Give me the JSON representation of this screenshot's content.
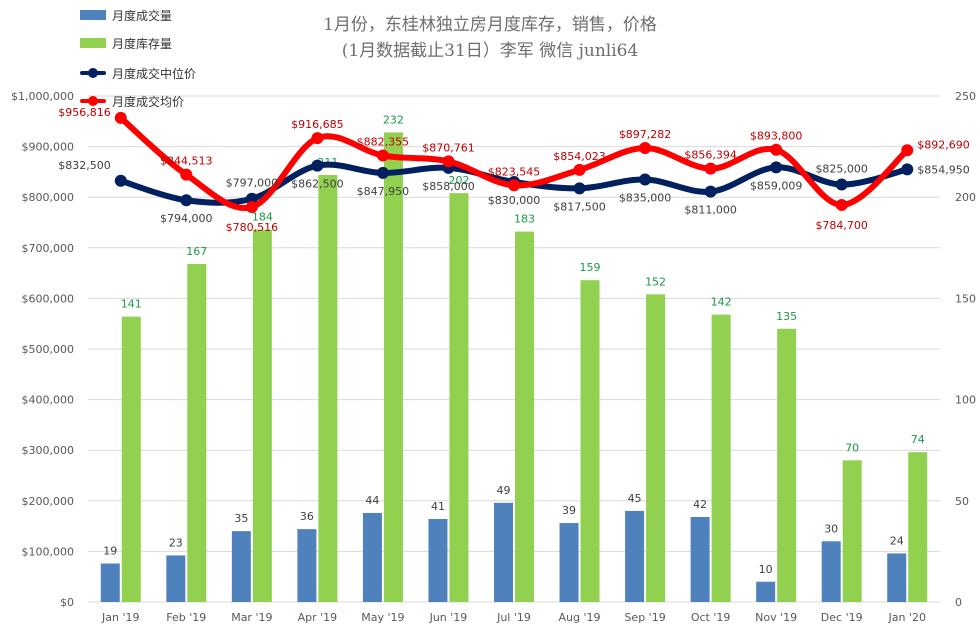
{
  "chart_data": {
    "type": "bar+line",
    "title": "1月份，东桂林独立房月度库存，销售，价格",
    "subtitle": "(1月数据截止31日）李军 微信 junli64",
    "categories": [
      "Jan '19",
      "Feb '19",
      "Mar '19",
      "Apr '19",
      "May '19",
      "Jun '19",
      "Jul '19",
      "Aug '19",
      "Sep '19",
      "Oct '19",
      "Nov '19",
      "Dec '19",
      "Jan '20"
    ],
    "left_axis": {
      "min": 0,
      "max": 1000000,
      "step": 100000,
      "tick_labels": [
        "$0",
        "$100,000",
        "$200,000",
        "$300,000",
        "$400,000",
        "$500,000",
        "$600,000",
        "$700,000",
        "$800,000",
        "$900,000",
        "$1,000,000"
      ]
    },
    "right_axis": {
      "min": 0,
      "max": 250,
      "step": 50,
      "tick_labels": [
        "0",
        "50",
        "100",
        "150",
        "200",
        "250"
      ]
    },
    "series": [
      {
        "name": "月度成交量",
        "kind": "bar",
        "axis": "right",
        "color": "#4f81bd",
        "values": [
          19,
          23,
          35,
          36,
          44,
          41,
          49,
          39,
          45,
          42,
          10,
          30,
          24
        ]
      },
      {
        "name": "月度库存量",
        "kind": "bar",
        "axis": "right",
        "color": "#92d050",
        "label_color": "#1a9a4a",
        "values": [
          141,
          167,
          184,
          211,
          232,
          202,
          183,
          159,
          152,
          142,
          135,
          70,
          74
        ],
        "labels": [
          "141",
          "167",
          "184",
          "211",
          "232",
          "202",
          "183",
          "159",
          "152",
          "142",
          "135",
          "70",
          "74"
        ]
      },
      {
        "name": "月度成交中位价",
        "kind": "line",
        "axis": "left",
        "color": "#002060",
        "values": [
          832500,
          794000,
          797000,
          862500,
          847950,
          858000,
          830000,
          817500,
          835000,
          811000,
          859009,
          825000,
          854950
        ],
        "labels": [
          "$832,500",
          "$794,000",
          "$797,000",
          "$862,500",
          "$847,950",
          "$858,000",
          "$830,000",
          "$817,500",
          "$835,000",
          "$811,000",
          "$859,009",
          "$825,000",
          "$854,950"
        ]
      },
      {
        "name": "月度成交均价",
        "kind": "line",
        "axis": "left",
        "color": "#ff0000",
        "label_color": "#c00000",
        "values": [
          956816,
          844513,
          780516,
          916685,
          882355,
          870761,
          823545,
          854023,
          897282,
          856394,
          893800,
          784700,
          892690
        ],
        "labels": [
          "$956,816",
          "$844,513",
          "$780,516",
          "$916,685",
          "$882,355",
          "$870,761",
          "$823,545",
          "$854,023",
          "$897,282",
          "$856,394",
          "$893,800",
          "$784,700",
          "$892,690"
        ]
      }
    ],
    "legend_position": "top-left",
    "grid": true
  }
}
